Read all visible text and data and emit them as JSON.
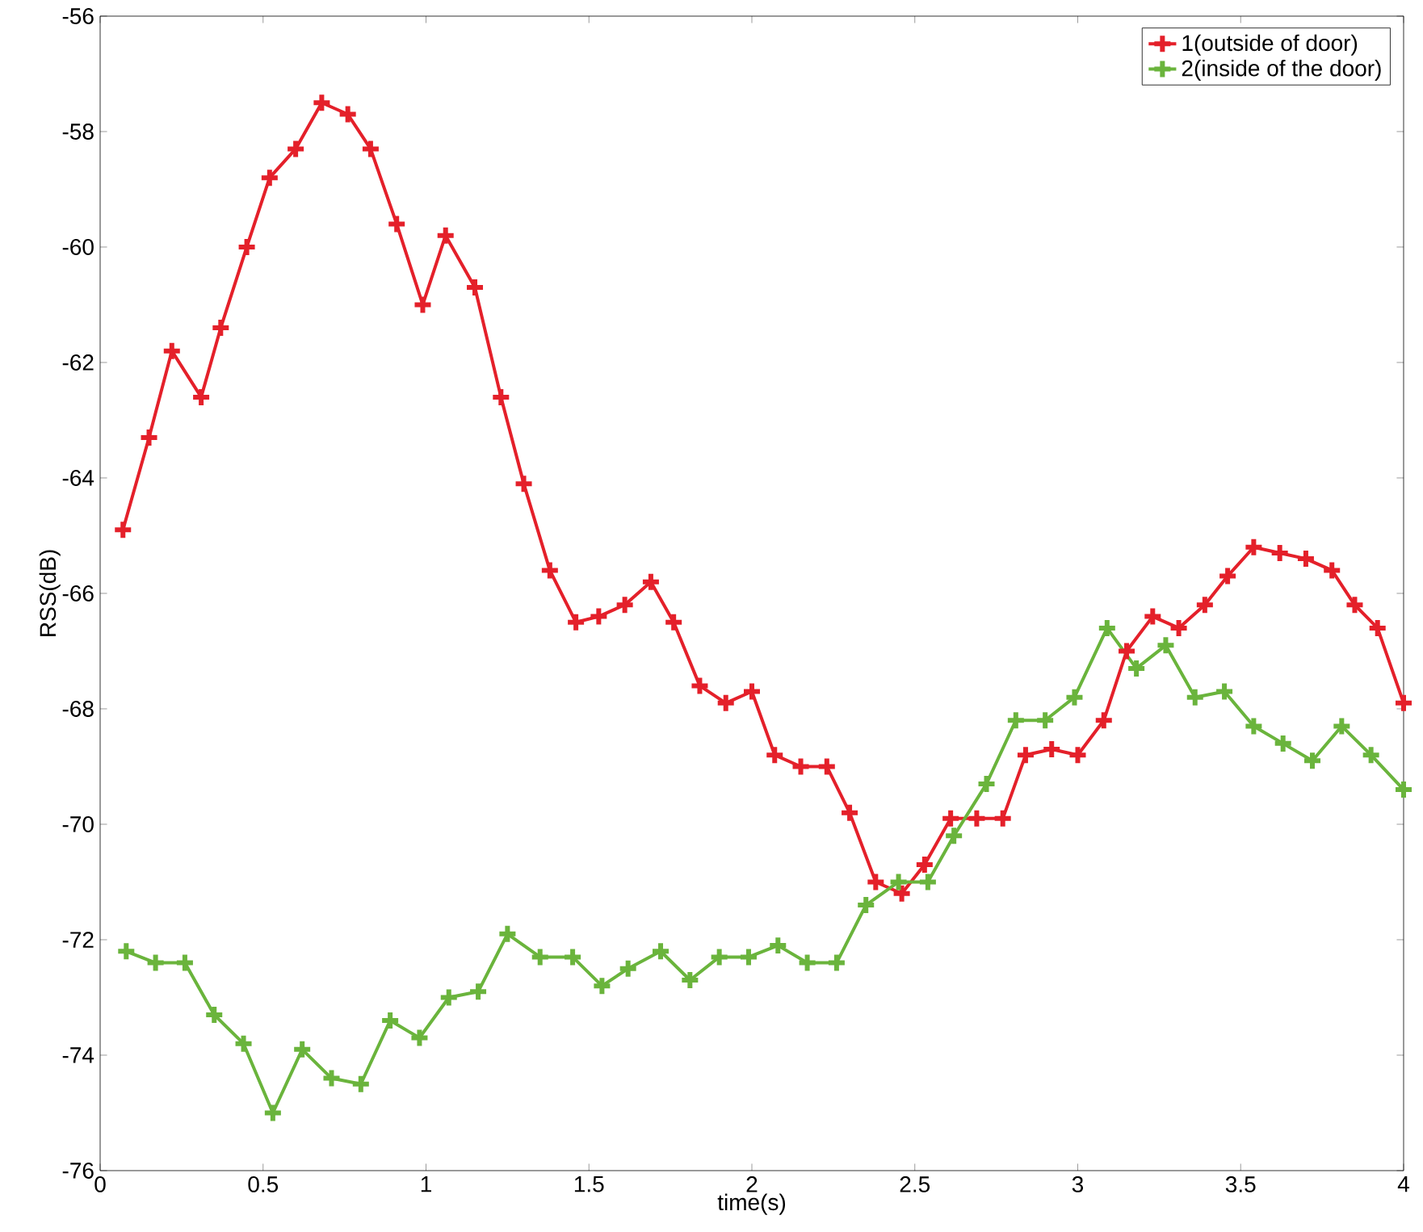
{
  "chart_data": {
    "type": "line",
    "xlabel": "time(s)",
    "ylabel": "RSS(dB)",
    "xlim": [
      0,
      4
    ],
    "ylim": [
      -76,
      -56
    ],
    "xticks": [
      0,
      0.5,
      1,
      1.5,
      2,
      2.5,
      3,
      3.5,
      4
    ],
    "yticks": [
      -76,
      -74,
      -72,
      -70,
      -68,
      -66,
      -64,
      -62,
      -60,
      -58,
      -56
    ],
    "grid": false,
    "legend": "top right",
    "marker": "cross",
    "line_style": "solid",
    "series": [
      {
        "name": "1(outside of door)",
        "color": "#e4202a",
        "x": [
          0.07,
          0.15,
          0.22,
          0.31,
          0.37,
          0.45,
          0.52,
          0.6,
          0.68,
          0.76,
          0.83,
          0.91,
          0.99,
          1.06,
          1.15,
          1.23,
          1.3,
          1.38,
          1.46,
          1.53,
          1.61,
          1.69,
          1.76,
          1.84,
          1.92,
          2.0,
          2.07,
          2.15,
          2.23,
          2.3,
          2.38,
          2.46,
          2.53,
          2.61,
          2.69,
          2.77,
          2.84,
          2.92,
          3.0,
          3.08,
          3.15,
          3.23,
          3.31,
          3.39,
          3.46,
          3.54,
          3.62,
          3.7,
          3.78,
          3.85,
          3.92,
          4.0
        ],
        "values": [
          -64.9,
          -63.3,
          -61.8,
          -62.6,
          -61.4,
          -60,
          -58.8,
          -58.3,
          -57.5,
          -57.7,
          -58.3,
          -59.6,
          -61,
          -59.8,
          -60.7,
          -62.6,
          -64.1,
          -65.6,
          -66.5,
          -66.4,
          -66.2,
          -65.8,
          -66.5,
          -67.6,
          -67.9,
          -67.7,
          -68.8,
          -69,
          -69,
          -69.8,
          -71,
          -71.2,
          -70.7,
          -69.9,
          -69.9,
          -69.9,
          -68.8,
          -68.7,
          -68.8,
          -68.2,
          -67,
          -66.4,
          -66.6,
          -66.2,
          -65.7,
          -65.2,
          -65.3,
          -65.4,
          -65.6,
          -66.2,
          -66.6,
          -67.9
        ]
      },
      {
        "name": "2(inside of the door)",
        "color": "#6ab43c",
        "x": [
          0.08,
          0.17,
          0.26,
          0.35,
          0.44,
          0.53,
          0.62,
          0.71,
          0.8,
          0.89,
          0.98,
          1.07,
          1.16,
          1.25,
          1.35,
          1.45,
          1.54,
          1.62,
          1.72,
          1.81,
          1.9,
          1.99,
          2.08,
          2.17,
          2.26,
          2.35,
          2.45,
          2.54,
          2.62,
          2.72,
          2.81,
          2.9,
          2.99,
          3.09,
          3.18,
          3.27,
          3.36,
          3.45,
          3.54,
          3.63,
          3.72,
          3.81,
          3.9,
          4.0
        ],
        "values": [
          -72.2,
          -72.4,
          -72.4,
          -73.3,
          -73.8,
          -75.0,
          -73.9,
          -74.4,
          -74.5,
          -73.4,
          -73.7,
          -73.0,
          -72.9,
          -71.9,
          -72.3,
          -72.3,
          -72.8,
          -72.5,
          -72.2,
          -72.7,
          -72.3,
          -72.3,
          -72.1,
          -72.4,
          -72.4,
          -71.4,
          -71.0,
          -71.0,
          -70.2,
          -69.3,
          -68.2,
          -68.2,
          -67.8,
          -66.6,
          -67.3,
          -66.9,
          -67.8,
          -67.7,
          -68.3,
          -68.6,
          -68.9,
          -68.3,
          -68.8,
          -69.4
        ]
      }
    ]
  }
}
